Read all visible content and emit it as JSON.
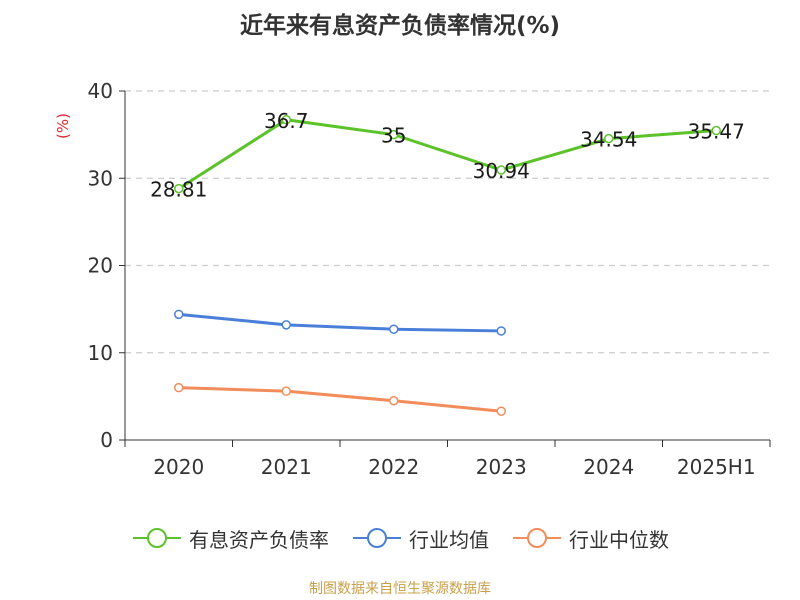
{
  "chart_data": {
    "type": "line",
    "title": "近年来有息资产负债率情况(%)",
    "ylabel": "(%)",
    "xlabel": "",
    "categories": [
      "2020",
      "2021",
      "2022",
      "2023",
      "2024",
      "2025H1"
    ],
    "ylim": [
      0,
      40
    ],
    "yticks": [
      0,
      10,
      20,
      30,
      40
    ],
    "grid": true,
    "legend_position": "bottom",
    "series": [
      {
        "name": "有息资产负债率",
        "color": "#5cc22a",
        "values": [
          28.81,
          36.7,
          35,
          30.94,
          34.54,
          35.47
        ],
        "labels": [
          "28.81",
          "36.7",
          "35",
          "30.94",
          "34.54",
          "35.47"
        ]
      },
      {
        "name": "行业均值",
        "color": "#4a7fd9",
        "values": [
          14.4,
          13.2,
          12.7,
          12.5,
          null,
          null
        ]
      },
      {
        "name": "行业中位数",
        "color": "#f28c5a",
        "values": [
          6.0,
          5.6,
          4.5,
          3.3,
          null,
          null
        ]
      }
    ]
  },
  "colors": {
    "ylabel": "#e0282e",
    "axis": "#333333",
    "grid": "#cccccc"
  },
  "source": "制图数据来自恒生聚源数据库"
}
